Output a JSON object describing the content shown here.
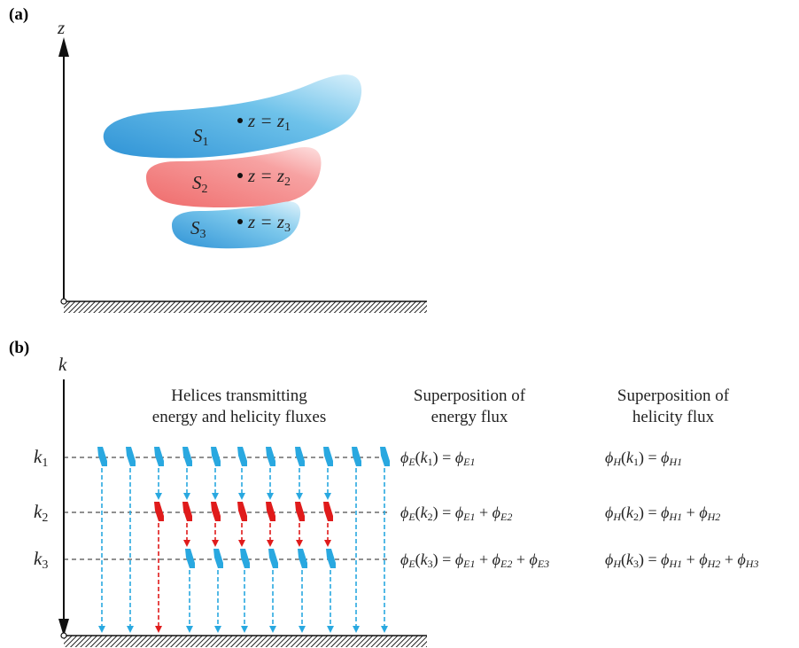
{
  "panel_a": {
    "label": "(a)",
    "axis_label": "z",
    "surfaces": [
      {
        "name": "S",
        "sub": "1",
        "eq_var": "z = z",
        "eq_sub": "1",
        "color": "#3ea3dc"
      },
      {
        "name": "S",
        "sub": "2",
        "eq_var": "z = z",
        "eq_sub": "2",
        "color": "#f07a7a"
      },
      {
        "name": "S",
        "sub": "3",
        "eq_var": "z = z",
        "eq_sub": "3",
        "color": "#3ea3dc"
      }
    ]
  },
  "panel_b": {
    "label": "(b)",
    "axis_label": "k",
    "levels": [
      {
        "k": "k",
        "sub": "1"
      },
      {
        "k": "k",
        "sub": "2"
      },
      {
        "k": "k",
        "sub": "3"
      }
    ],
    "headers": {
      "helices_line1": "Helices transmitting",
      "helices_line2": "energy and helicity fluxes",
      "energy_line1": "Superposition of",
      "energy_line2": "energy flux",
      "helicity_line1": "Superposition of",
      "helicity_line2": "helicity flux"
    },
    "energy_eqs": [
      {
        "lhs": "ϕE(k1) = ",
        "terms": [
          "ϕE1"
        ]
      },
      {
        "lhs": "ϕE(k2) = ",
        "terms": [
          "ϕE1",
          "ϕE2"
        ]
      },
      {
        "lhs": "ϕE(k3) = ",
        "terms": [
          "ϕE1",
          "ϕE2",
          "ϕE3"
        ]
      }
    ],
    "helicity_eqs": [
      {
        "lhs": "ϕH(k1) = ",
        "terms": [
          "ϕH1"
        ]
      },
      {
        "lhs": "ϕH(k2) = ",
        "terms": [
          "ϕH1",
          "ϕH2"
        ]
      },
      {
        "lhs": "ϕH(k3) = ",
        "terms": [
          "ϕH1",
          "ϕH2",
          "ϕH3"
        ]
      }
    ],
    "colors": {
      "blue": "#29a8e0",
      "red": "#e01b1b"
    }
  }
}
